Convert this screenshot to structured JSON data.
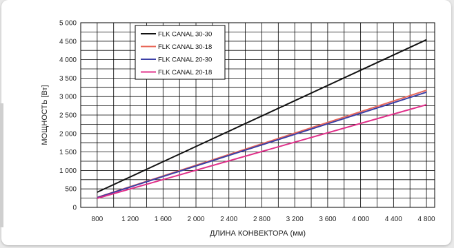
{
  "chart_data": {
    "type": "line",
    "title": "",
    "xlabel": "ДЛИНА КОНВЕКТОРА (мм)",
    "ylabel": "МОЩНОСТЬ [Вт]",
    "xlim": [
      600,
      4900
    ],
    "ylim": [
      0,
      5000
    ],
    "grid": true,
    "legend_position": "top-left",
    "x_ticks": [
      "800",
      "1 200",
      "1 600",
      "2 000",
      "2 400",
      "2 800",
      "3 200",
      "3 600",
      "4 000",
      "4 400",
      "4 800"
    ],
    "y_ticks": [
      "0",
      "500",
      "1 000",
      "1 500",
      "2 000",
      "2 500",
      "3 000",
      "3 500",
      "4 000",
      "4 500",
      "5 000"
    ],
    "x": [
      800,
      4800
    ],
    "series": [
      {
        "name": "FLK CANAL 30-30",
        "color": "#111111",
        "values": [
          410,
          4540
        ]
      },
      {
        "name": "FLK CANAL 30-18",
        "color": "#e8685a",
        "values": [
          270,
          3170
        ]
      },
      {
        "name": "FLK CANAL 20-30",
        "color": "#3b3fa6",
        "values": [
          265,
          3120
        ]
      },
      {
        "name": "FLK CANAL 20-18",
        "color": "#e0308a",
        "values": [
          245,
          2780
        ]
      }
    ]
  }
}
